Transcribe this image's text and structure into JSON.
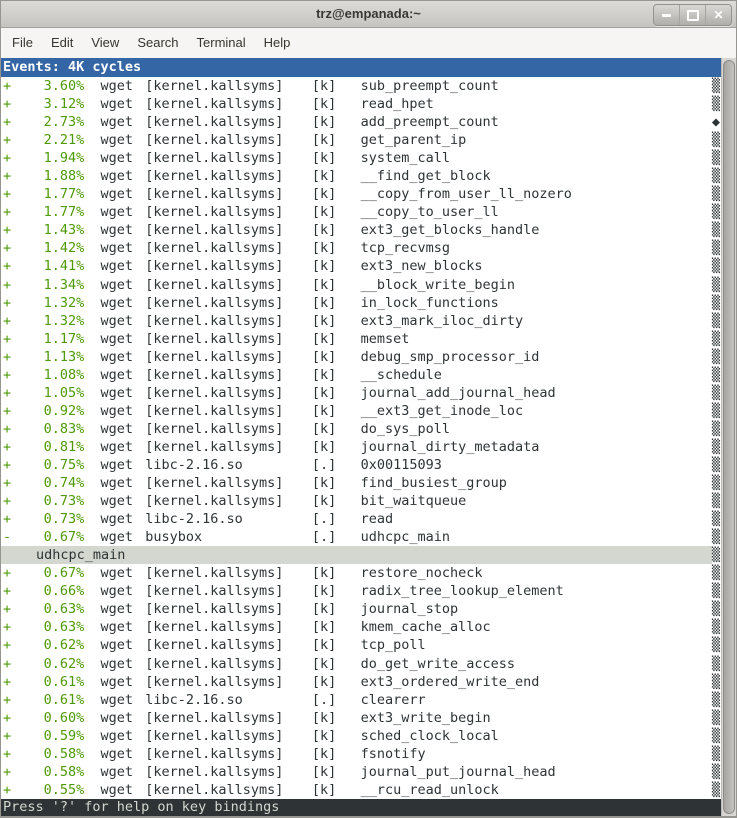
{
  "window": {
    "title": "trz@empanada:~",
    "controls": {
      "minimize": "minimize",
      "maximize": "maximize",
      "close_glyph": "✕"
    }
  },
  "menu": {
    "items": [
      "File",
      "Edit",
      "View",
      "Search",
      "Terminal",
      "Help"
    ]
  },
  "perf": {
    "events_header": "Events: 4K cycles",
    "status_text": "Press '?' for help on key bindings",
    "rows": [
      {
        "sign": "+",
        "percent": "3.60%",
        "command": "wget",
        "dso": "[kernel.kallsyms]",
        "type": "[k]",
        "symbol": "sub_preempt_count",
        "marker": "▒"
      },
      {
        "sign": "+",
        "percent": "3.12%",
        "command": "wget",
        "dso": "[kernel.kallsyms]",
        "type": "[k]",
        "symbol": "read_hpet",
        "marker": "▒"
      },
      {
        "sign": "+",
        "percent": "2.73%",
        "command": "wget",
        "dso": "[kernel.kallsyms]",
        "type": "[k]",
        "symbol": "add_preempt_count",
        "marker": "◆"
      },
      {
        "sign": "+",
        "percent": "2.21%",
        "command": "wget",
        "dso": "[kernel.kallsyms]",
        "type": "[k]",
        "symbol": "get_parent_ip",
        "marker": "▒"
      },
      {
        "sign": "+",
        "percent": "1.94%",
        "command": "wget",
        "dso": "[kernel.kallsyms]",
        "type": "[k]",
        "symbol": "system_call",
        "marker": "▒"
      },
      {
        "sign": "+",
        "percent": "1.88%",
        "command": "wget",
        "dso": "[kernel.kallsyms]",
        "type": "[k]",
        "symbol": "__find_get_block",
        "marker": "▒"
      },
      {
        "sign": "+",
        "percent": "1.77%",
        "command": "wget",
        "dso": "[kernel.kallsyms]",
        "type": "[k]",
        "symbol": "__copy_from_user_ll_nozero",
        "marker": "▒"
      },
      {
        "sign": "+",
        "percent": "1.77%",
        "command": "wget",
        "dso": "[kernel.kallsyms]",
        "type": "[k]",
        "symbol": "__copy_to_user_ll",
        "marker": "▒"
      },
      {
        "sign": "+",
        "percent": "1.43%",
        "command": "wget",
        "dso": "[kernel.kallsyms]",
        "type": "[k]",
        "symbol": "ext3_get_blocks_handle",
        "marker": "▒"
      },
      {
        "sign": "+",
        "percent": "1.42%",
        "command": "wget",
        "dso": "[kernel.kallsyms]",
        "type": "[k]",
        "symbol": "tcp_recvmsg",
        "marker": "▒"
      },
      {
        "sign": "+",
        "percent": "1.41%",
        "command": "wget",
        "dso": "[kernel.kallsyms]",
        "type": "[k]",
        "symbol": "ext3_new_blocks",
        "marker": "▒"
      },
      {
        "sign": "+",
        "percent": "1.34%",
        "command": "wget",
        "dso": "[kernel.kallsyms]",
        "type": "[k]",
        "symbol": "__block_write_begin",
        "marker": "▒"
      },
      {
        "sign": "+",
        "percent": "1.32%",
        "command": "wget",
        "dso": "[kernel.kallsyms]",
        "type": "[k]",
        "symbol": "in_lock_functions",
        "marker": "▒"
      },
      {
        "sign": "+",
        "percent": "1.32%",
        "command": "wget",
        "dso": "[kernel.kallsyms]",
        "type": "[k]",
        "symbol": "ext3_mark_iloc_dirty",
        "marker": "▒"
      },
      {
        "sign": "+",
        "percent": "1.17%",
        "command": "wget",
        "dso": "[kernel.kallsyms]",
        "type": "[k]",
        "symbol": "memset",
        "marker": "▒"
      },
      {
        "sign": "+",
        "percent": "1.13%",
        "command": "wget",
        "dso": "[kernel.kallsyms]",
        "type": "[k]",
        "symbol": "debug_smp_processor_id",
        "marker": "▒"
      },
      {
        "sign": "+",
        "percent": "1.08%",
        "command": "wget",
        "dso": "[kernel.kallsyms]",
        "type": "[k]",
        "symbol": "__schedule",
        "marker": "▒"
      },
      {
        "sign": "+",
        "percent": "1.05%",
        "command": "wget",
        "dso": "[kernel.kallsyms]",
        "type": "[k]",
        "symbol": "journal_add_journal_head",
        "marker": "▒"
      },
      {
        "sign": "+",
        "percent": "0.92%",
        "command": "wget",
        "dso": "[kernel.kallsyms]",
        "type": "[k]",
        "symbol": "__ext3_get_inode_loc",
        "marker": "▒"
      },
      {
        "sign": "+",
        "percent": "0.83%",
        "command": "wget",
        "dso": "[kernel.kallsyms]",
        "type": "[k]",
        "symbol": "do_sys_poll",
        "marker": "▒"
      },
      {
        "sign": "+",
        "percent": "0.81%",
        "command": "wget",
        "dso": "[kernel.kallsyms]",
        "type": "[k]",
        "symbol": "journal_dirty_metadata",
        "marker": "▒"
      },
      {
        "sign": "+",
        "percent": "0.75%",
        "command": "wget",
        "dso": "libc-2.16.so",
        "type": "[.]",
        "symbol": "0x00115093",
        "marker": "▒"
      },
      {
        "sign": "+",
        "percent": "0.74%",
        "command": "wget",
        "dso": "[kernel.kallsyms]",
        "type": "[k]",
        "symbol": "find_busiest_group",
        "marker": "▒"
      },
      {
        "sign": "+",
        "percent": "0.73%",
        "command": "wget",
        "dso": "[kernel.kallsyms]",
        "type": "[k]",
        "symbol": "bit_waitqueue",
        "marker": "▒"
      },
      {
        "sign": "+",
        "percent": "0.73%",
        "command": "wget",
        "dso": "libc-2.16.so",
        "type": "[.]",
        "symbol": "read",
        "marker": "▒"
      },
      {
        "sign": "-",
        "percent": "0.67%",
        "command": "wget",
        "dso": "busybox",
        "type": "[.]",
        "symbol": "udhcpc_main",
        "marker": "▒"
      },
      {
        "child": true,
        "selected": true,
        "symbol": "udhcpc_main",
        "marker": "▒"
      },
      {
        "sign": "+",
        "percent": "0.67%",
        "command": "wget",
        "dso": "[kernel.kallsyms]",
        "type": "[k]",
        "symbol": "restore_nocheck",
        "marker": "▒"
      },
      {
        "sign": "+",
        "percent": "0.66%",
        "command": "wget",
        "dso": "[kernel.kallsyms]",
        "type": "[k]",
        "symbol": "radix_tree_lookup_element",
        "marker": "▒"
      },
      {
        "sign": "+",
        "percent": "0.63%",
        "command": "wget",
        "dso": "[kernel.kallsyms]",
        "type": "[k]",
        "symbol": "journal_stop",
        "marker": "▒"
      },
      {
        "sign": "+",
        "percent": "0.63%",
        "command": "wget",
        "dso": "[kernel.kallsyms]",
        "type": "[k]",
        "symbol": "kmem_cache_alloc",
        "marker": "▒"
      },
      {
        "sign": "+",
        "percent": "0.62%",
        "command": "wget",
        "dso": "[kernel.kallsyms]",
        "type": "[k]",
        "symbol": "tcp_poll",
        "marker": "▒"
      },
      {
        "sign": "+",
        "percent": "0.62%",
        "command": "wget",
        "dso": "[kernel.kallsyms]",
        "type": "[k]",
        "symbol": "do_get_write_access",
        "marker": "▒"
      },
      {
        "sign": "+",
        "percent": "0.61%",
        "command": "wget",
        "dso": "[kernel.kallsyms]",
        "type": "[k]",
        "symbol": "ext3_ordered_write_end",
        "marker": "▒"
      },
      {
        "sign": "+",
        "percent": "0.61%",
        "command": "wget",
        "dso": "libc-2.16.so",
        "type": "[.]",
        "symbol": "clearerr",
        "marker": "▒"
      },
      {
        "sign": "+",
        "percent": "0.60%",
        "command": "wget",
        "dso": "[kernel.kallsyms]",
        "type": "[k]",
        "symbol": "ext3_write_begin",
        "marker": "▒"
      },
      {
        "sign": "+",
        "percent": "0.59%",
        "command": "wget",
        "dso": "[kernel.kallsyms]",
        "type": "[k]",
        "symbol": "sched_clock_local",
        "marker": "▒"
      },
      {
        "sign": "+",
        "percent": "0.58%",
        "command": "wget",
        "dso": "[kernel.kallsyms]",
        "type": "[k]",
        "symbol": "fsnotify",
        "marker": "▒"
      },
      {
        "sign": "+",
        "percent": "0.58%",
        "command": "wget",
        "dso": "[kernel.kallsyms]",
        "type": "[k]",
        "symbol": "journal_put_journal_head",
        "marker": "▒"
      },
      {
        "sign": "+",
        "percent": "0.55%",
        "command": "wget",
        "dso": "[kernel.kallsyms]",
        "type": "[k]",
        "symbol": "__rcu_read_unlock",
        "marker": "▒"
      }
    ]
  },
  "colors": {
    "accent_green": "#4e9a06",
    "text": "#2e3436",
    "header_bg": "#3465a4",
    "header_text": "#ffffff",
    "selected_row_bg": "#d3d7cf",
    "status_bg": "#2e3436",
    "status_text": "#d3d7cf",
    "terminal_bg": "#ffffff"
  }
}
